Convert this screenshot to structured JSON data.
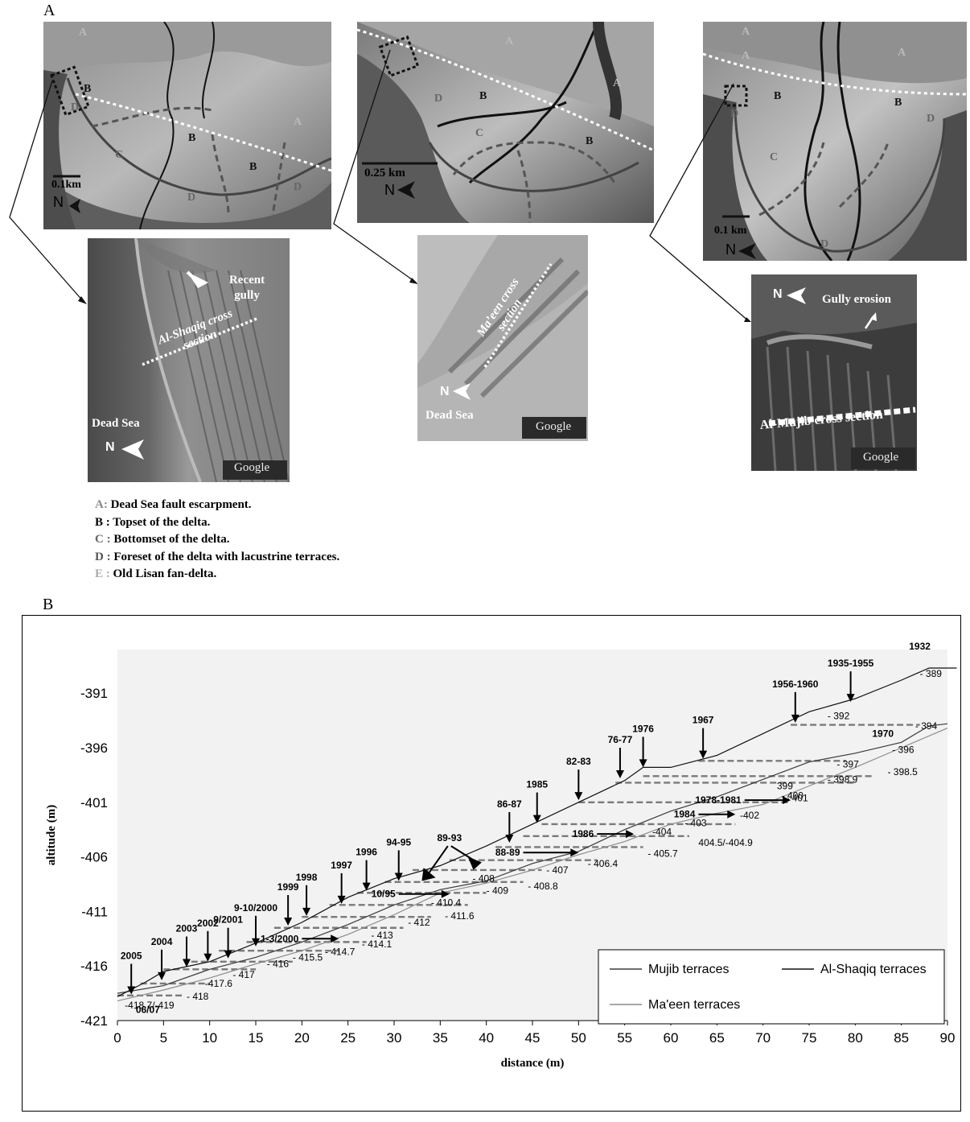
{
  "panel_a": {
    "label": "A",
    "photo_left": {
      "letters": {
        "a1": "A",
        "a2": "A",
        "b1": "B",
        "b2": "B",
        "b3": "B",
        "c": "C",
        "d1": "D",
        "d2": "D",
        "d3": "D"
      },
      "scale": "0.1km",
      "north": "N"
    },
    "photo_mid": {
      "letters": {
        "a1": "A",
        "a2": "A",
        "b1": "B",
        "b2": "B",
        "c": "C",
        "d": "D"
      },
      "scale": "0.25 km",
      "north": "N"
    },
    "photo_right": {
      "letters": {
        "a1": "A",
        "a2": "A",
        "a3": "A",
        "b1": "B",
        "b2": "B",
        "c": "C",
        "d1": "D",
        "d2": "D",
        "d3": "D"
      },
      "scale": "0.1 km",
      "north": "N"
    },
    "zoom_left": {
      "recent_gully": "Recent gully",
      "cross_section": "Al-Shaqiq cross section",
      "sea": "Dead Sea",
      "north": "N",
      "watermark": "Google"
    },
    "zoom_mid": {
      "cross_section": "Ma’een cross section",
      "sea": "Dead Sea",
      "north": "N",
      "watermark": "Google"
    },
    "zoom_right": {
      "gully": "Gully erosion",
      "cross_section": "Al-Mujib cross section",
      "north": "N",
      "watermark": "Google"
    },
    "legend": [
      {
        "key": "A:",
        "text": "Dead Sea fault escarpment."
      },
      {
        "key": "B :",
        "text": "Topset of the delta."
      },
      {
        "key": "C :",
        "text": "Bottomset of the delta."
      },
      {
        "key": "D :",
        "text": "Foreset of the delta with lacustrine terraces."
      },
      {
        "key": "E :",
        "text": "Old Lisan fan-delta."
      }
    ]
  },
  "panel_b": {
    "label": "B"
  },
  "colors": {
    "plot_bg": "#f2f2f2",
    "dashed": "#7a7a7a",
    "mujib": "#3a3a3a",
    "shaqiq": "#111111",
    "maeen": "#8c8c8c"
  },
  "chart_data": {
    "type": "line",
    "xlabel": "distance (m)",
    "ylabel": "altitude (m)",
    "xlim": [
      0,
      90
    ],
    "ylim": [
      -421,
      -387
    ],
    "x_ticks": [
      0,
      5,
      10,
      15,
      20,
      25,
      30,
      35,
      40,
      45,
      50,
      55,
      60,
      65,
      70,
      75,
      80,
      85,
      90
    ],
    "y_ticks": [
      -391,
      -396,
      -401,
      -406,
      -411,
      -416,
      -421
    ],
    "grid": false,
    "legend_position": "bottom-right",
    "series": [
      {
        "name": "Mujib terraces",
        "x": [
          0,
          5,
          10,
          15,
          20,
          25,
          30,
          35,
          40,
          45,
          50,
          55,
          60,
          65,
          70,
          75,
          80,
          85,
          88,
          90
        ],
        "y": [
          -418.5,
          -417.8,
          -416.3,
          -415.2,
          -413.8,
          -412.2,
          -410.4,
          -409,
          -408.2,
          -406.6,
          -405.5,
          -403.5,
          -401.8,
          -400.5,
          -398.9,
          -397.3,
          -396.5,
          -395.5,
          -394,
          -393.8
        ]
      },
      {
        "name": "Al-Shaqiq terraces",
        "x": [
          0,
          3,
          5,
          10,
          15,
          20,
          25,
          30,
          35,
          40,
          45,
          50,
          55,
          57,
          60,
          65,
          70,
          75,
          80,
          85,
          88,
          91
        ],
        "y": [
          -418.8,
          -417.5,
          -416.5,
          -415.6,
          -413.9,
          -412,
          -409.7,
          -408,
          -406.8,
          -405,
          -403,
          -401,
          -399,
          -397.8,
          -397.8,
          -396.7,
          -394.7,
          -392.7,
          -391.5,
          -389.8,
          -388.7,
          -388.7
        ]
      },
      {
        "name": "Ma'een terraces",
        "x": [
          0,
          5,
          10,
          15,
          20,
          25,
          30,
          35,
          40,
          45,
          50,
          55,
          60,
          65,
          70,
          75,
          80,
          85,
          90
        ],
        "y": [
          -419.2,
          -418.2,
          -417.1,
          -415.8,
          -414.6,
          -413.1,
          -411.3,
          -409.3,
          -408.4,
          -407.2,
          -405.8,
          -404.6,
          -403,
          -402,
          -401.2,
          -399.5,
          -397.8,
          -396,
          -394.2
        ]
      }
    ],
    "dashed_levels": [
      {
        "y": -418.7,
        "x0": 0,
        "x1": 7
      },
      {
        "y": -417.6,
        "x0": 2.5,
        "x1": 10
      },
      {
        "y": -416.3,
        "x0": 5,
        "x1": 15
      },
      {
        "y": -415.6,
        "x0": 8,
        "x1": 19
      },
      {
        "y": -414.6,
        "x0": 11,
        "x1": 24
      },
      {
        "y": -413.8,
        "x0": 14,
        "x1": 27
      },
      {
        "y": -412.5,
        "x0": 17,
        "x1": 31
      },
      {
        "y": -411.5,
        "x0": 20,
        "x1": 34
      },
      {
        "y": -410.4,
        "x0": 23,
        "x1": 38
      },
      {
        "y": -409.3,
        "x0": 26,
        "x1": 40
      },
      {
        "y": -408.3,
        "x0": 29,
        "x1": 44
      },
      {
        "y": -407.2,
        "x0": 32,
        "x1": 46
      },
      {
        "y": -406.3,
        "x0": 36,
        "x1": 52
      },
      {
        "y": -405.1,
        "x0": 41,
        "x1": 57
      },
      {
        "y": -404.1,
        "x0": 44,
        "x1": 62
      },
      {
        "y": -403,
        "x0": 46,
        "x1": 67
      },
      {
        "y": -401,
        "x0": 50,
        "x1": 73
      },
      {
        "y": -399.2,
        "x0": 54,
        "x1": 80
      },
      {
        "y": -398.6,
        "x0": 57,
        "x1": 82
      },
      {
        "y": -397.2,
        "x0": 63,
        "x1": 79
      },
      {
        "y": -393.9,
        "x0": 73,
        "x1": 87
      }
    ],
    "year_labels": [
      {
        "text": "2005",
        "x": 1.5,
        "y": -418.6,
        "style": "down"
      },
      {
        "text": "2004",
        "x": 4.8,
        "y": -417.3,
        "style": "down"
      },
      {
        "text": "2003",
        "x": 7.5,
        "y": -416.1,
        "style": "down"
      },
      {
        "text": "2002",
        "x": 9.8,
        "y": -415.6,
        "style": "down"
      },
      {
        "text": "9/2001",
        "x": 12,
        "y": -415.3,
        "style": "down"
      },
      {
        "text": "9-10/2000",
        "x": 15,
        "y": -414.2,
        "style": "down"
      },
      {
        "text": "1999",
        "x": 18.5,
        "y": -412.3,
        "style": "down"
      },
      {
        "text": "1998",
        "x": 20.5,
        "y": -411.4,
        "style": "down"
      },
      {
        "text": "1997",
        "x": 24.3,
        "y": -410.3,
        "style": "down"
      },
      {
        "text": "1996",
        "x": 27,
        "y": -409.1,
        "style": "down"
      },
      {
        "text": "94-95",
        "x": 30.5,
        "y": -408.2,
        "style": "down"
      },
      {
        "text": "86-87",
        "x": 42.5,
        "y": -404.7,
        "style": "down"
      },
      {
        "text": "1985",
        "x": 45.5,
        "y": -402.9,
        "style": "down"
      },
      {
        "text": "82-83",
        "x": 50,
        "y": -400.8,
        "style": "down"
      },
      {
        "text": "76-77",
        "x": 54.5,
        "y": -398.8,
        "style": "down"
      },
      {
        "text": "1976",
        "x": 57,
        "y": -397.8,
        "style": "down"
      },
      {
        "text": "1967",
        "x": 63.5,
        "y": -397,
        "style": "down"
      },
      {
        "text": "1956-1960",
        "x": 73.5,
        "y": -393.7,
        "style": "down"
      },
      {
        "text": "1935-1955",
        "x": 79.5,
        "y": -391.8,
        "style": "down"
      },
      {
        "text": "1932",
        "x": 87,
        "y": -387,
        "style": "plain"
      },
      {
        "text": "1970",
        "x": 83,
        "y": -395,
        "style": "plain"
      },
      {
        "text": "06/07",
        "x": 3.3,
        "y": -420.3,
        "style": "plain"
      },
      {
        "text": "1-3/2000",
        "x": 20,
        "y": -413.5,
        "style": "right",
        "tx": 24
      },
      {
        "text": "10/95",
        "x": 30.5,
        "y": -409.4,
        "style": "right",
        "tx": 36
      },
      {
        "text": "88-89",
        "x": 44,
        "y": -405.6,
        "style": "right",
        "tx": 50
      },
      {
        "text": "1986",
        "x": 52,
        "y": -403.9,
        "style": "right",
        "tx": 56
      },
      {
        "text": "1978-1981",
        "x": 68,
        "y": -400.8,
        "style": "right",
        "tx": 73
      },
      {
        "text": "1984",
        "x": 63,
        "y": -402.1,
        "style": "right",
        "tx": 67
      },
      {
        "text": "89-93",
        "x": 36,
        "y": -405.3,
        "style": "double"
      }
    ],
    "value_labels": [
      {
        "text": "-418.7/-419",
        "x": 0.8,
        "y": -419.6
      },
      {
        "text": "- 418",
        "x": 7.5,
        "y": -418.8
      },
      {
        "text": "-417.6",
        "x": 9.5,
        "y": -417.6
      },
      {
        "text": "- 417",
        "x": 12.5,
        "y": -416.8
      },
      {
        "text": "- 416",
        "x": 16.2,
        "y": -415.8
      },
      {
        "text": "- 415.5",
        "x": 19,
        "y": -415.2
      },
      {
        "text": "- 414.7",
        "x": 22.5,
        "y": -414.7
      },
      {
        "text": "- 414.1",
        "x": 26.5,
        "y": -414.0
      },
      {
        "text": "- 413",
        "x": 27.5,
        "y": -413.2
      },
      {
        "text": "- 412",
        "x": 31.5,
        "y": -412.0
      },
      {
        "text": "- 411.6",
        "x": 35.5,
        "y": -411.4
      },
      {
        "text": "- 410.4",
        "x": 34,
        "y": -410.2
      },
      {
        "text": "- 409",
        "x": 40,
        "y": -409.1
      },
      {
        "text": "- 408.8",
        "x": 44.5,
        "y": -408.7
      },
      {
        "text": "- 408",
        "x": 38.5,
        "y": -408.0
      },
      {
        "text": "- 407",
        "x": 46.5,
        "y": -407.2
      },
      {
        "text": "- 406.4",
        "x": 51,
        "y": -406.6
      },
      {
        "text": "- 405.7",
        "x": 57.5,
        "y": -405.7
      },
      {
        "text": "404.5/-404.9",
        "x": 63,
        "y": -404.7
      },
      {
        "text": "-404",
        "x": 58,
        "y": -403.7
      },
      {
        "text": "- 403",
        "x": 61.5,
        "y": -402.9
      },
      {
        "text": "-402",
        "x": 67.5,
        "y": -402.2
      },
      {
        "text": "- 401",
        "x": 72.5,
        "y": -400.6
      },
      {
        "text": "- 400",
        "x": 72,
        "y": -400.4
      },
      {
        "text": "399",
        "x": 71.5,
        "y": -399.5
      },
      {
        "text": "- 398.9",
        "x": 77,
        "y": -398.9
      },
      {
        "text": "- 398.5",
        "x": 83.5,
        "y": -398.2
      },
      {
        "text": "- 397",
        "x": 78,
        "y": -397.5
      },
      {
        "text": "- 396",
        "x": 84,
        "y": -396.2
      },
      {
        "text": "- 394",
        "x": 86.5,
        "y": -394.0
      },
      {
        "text": "- 392",
        "x": 77,
        "y": -393.1
      },
      {
        "text": "- 389",
        "x": 87,
        "y": -389.2
      }
    ]
  }
}
